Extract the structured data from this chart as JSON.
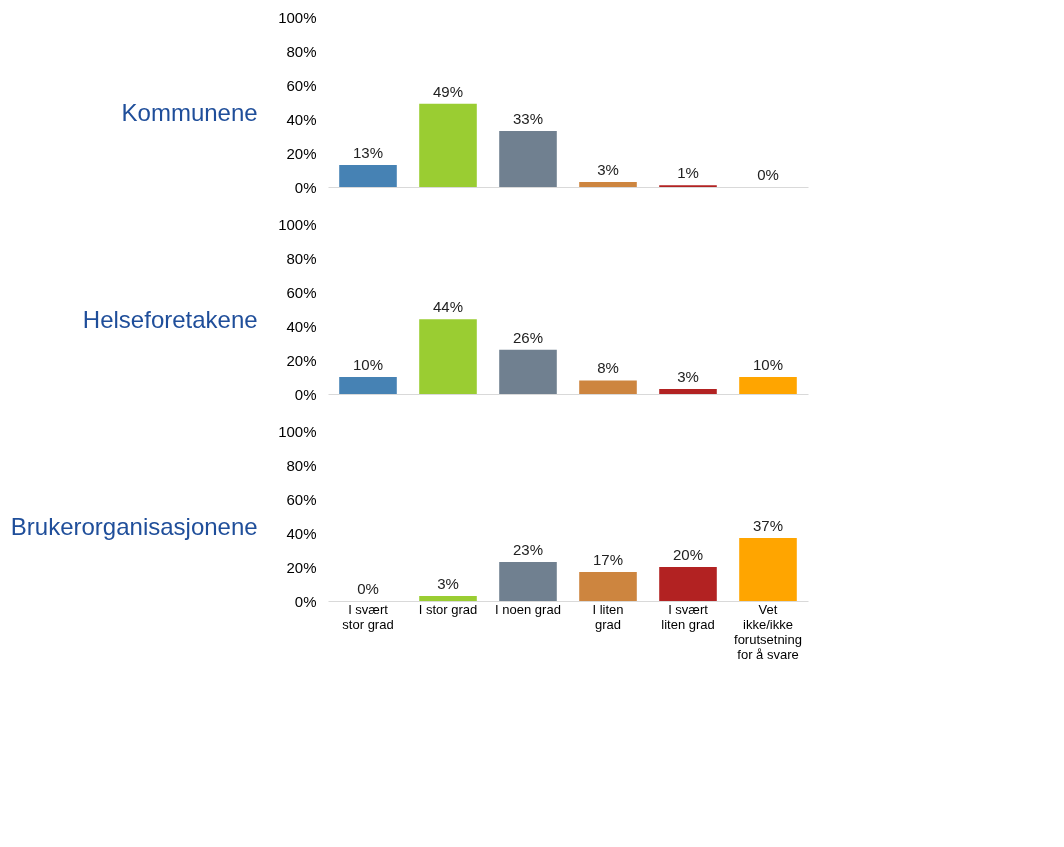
{
  "chart_data": [
    {
      "type": "bar",
      "title": "Kommunene",
      "categories": [
        null,
        null,
        null,
        null,
        null,
        null
      ],
      "values": [
        13,
        49,
        33,
        3,
        1,
        0
      ],
      "value_labels": [
        "13%",
        "49%",
        "33%",
        "3%",
        "1%",
        "0%"
      ],
      "colors": [
        "#4682b4",
        "#9acd32",
        "#708090",
        "#cd853f",
        "#b22222",
        "#ffa500"
      ],
      "ylim": [
        0,
        100
      ],
      "yticks": [
        {
          "value": 0,
          "label": "0%"
        },
        {
          "value": 20,
          "label": "20%"
        },
        {
          "value": 40,
          "label": "40%"
        },
        {
          "value": 60,
          "label": "60%"
        },
        {
          "value": 80,
          "label": "80%"
        },
        {
          "value": 100,
          "label": "100%"
        }
      ],
      "grid": false,
      "tick_labels": "y"
    },
    {
      "type": "bar",
      "title": "Helseforetakene",
      "categories": [
        null,
        null,
        null,
        null,
        null,
        null
      ],
      "values": [
        10,
        44,
        26,
        8,
        3,
        10
      ],
      "value_labels": [
        "10%",
        "44%",
        "26%",
        "8%",
        "3%",
        "10%"
      ],
      "colors": [
        "#4682b4",
        "#9acd32",
        "#708090",
        "#cd853f",
        "#b22222",
        "#ffa500"
      ],
      "ylim": [
        0,
        100
      ],
      "yticks": [
        {
          "value": 0,
          "label": "0%"
        },
        {
          "value": 20,
          "label": "20%"
        },
        {
          "value": 40,
          "label": "40%"
        },
        {
          "value": 60,
          "label": "60%"
        },
        {
          "value": 80,
          "label": "80%"
        },
        {
          "value": 100,
          "label": "100%"
        }
      ],
      "grid": false,
      "tick_labels": "y"
    },
    {
      "type": "bar",
      "title": "Brukerorganisasjonene",
      "categories": [
        "I svært stor grad",
        "I stor grad",
        "I noen grad",
        "I liten grad",
        "I svært liten grad",
        "Vet ikke/ikke forutsetning for å svare"
      ],
      "values": [
        0,
        3,
        23,
        17,
        20,
        37
      ],
      "value_labels": [
        "0%",
        "3%",
        "23%",
        "17%",
        "20%",
        "37%"
      ],
      "colors": [
        "#4682b4",
        "#9acd32",
        "#708090",
        "#cd853f",
        "#b22222",
        "#ffa500"
      ],
      "ylim": [
        0,
        100
      ],
      "yticks": [
        {
          "value": 0,
          "label": "0%"
        },
        {
          "value": 20,
          "label": "20%"
        },
        {
          "value": 40,
          "label": "40%"
        },
        {
          "value": 60,
          "label": "60%"
        },
        {
          "value": 80,
          "label": "80%"
        },
        {
          "value": 100,
          "label": "100%"
        }
      ],
      "grid": false
    }
  ]
}
